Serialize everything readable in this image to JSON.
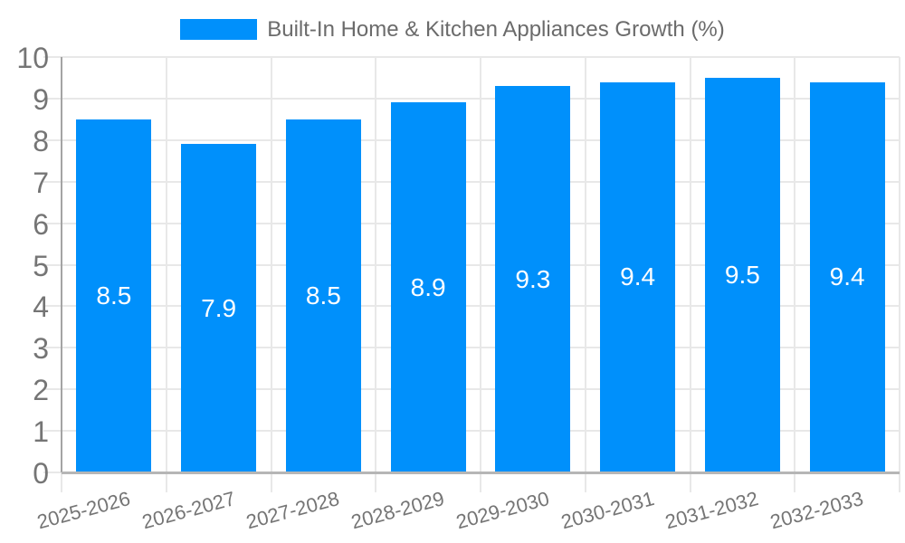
{
  "chart_data": {
    "type": "bar",
    "title": "",
    "xlabel": "",
    "ylabel": "",
    "legend_position": "top",
    "grid": true,
    "categories": [
      "2025-2026",
      "2026-2027",
      "2027-2028",
      "2028-2029",
      "2029-2030",
      "2030-2031",
      "2031-2032",
      "2032-2033"
    ],
    "series": [
      {
        "name": "Built-In Home & Kitchen Appliances Growth (%)",
        "values": [
          8.5,
          7.9,
          8.5,
          8.9,
          9.3,
          9.4,
          9.5,
          9.4
        ],
        "color": "#0090FB"
      }
    ],
    "value_labels": [
      "8.5",
      "7.9",
      "8.5",
      "8.9",
      "9.3",
      "9.4",
      "9.5",
      "9.4"
    ],
    "ylim": [
      0,
      10
    ],
    "yticks": [
      0,
      1,
      2,
      3,
      4,
      5,
      6,
      7,
      8,
      9,
      10
    ],
    "colors": {
      "bar": "#0090FB",
      "value_label": "#FFFFFF",
      "axis_label": "#757575",
      "legend_text": "#6B6B6B",
      "gridline": "#E8E8E8",
      "y_axis_line": "#A4A4A4",
      "x_axis_line": "#B6B6B6",
      "background": "#FFFFFF"
    }
  }
}
